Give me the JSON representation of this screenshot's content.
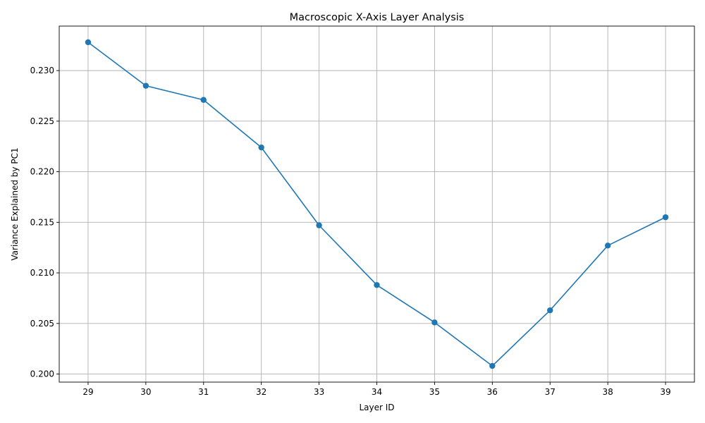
{
  "chart_data": {
    "type": "line",
    "title": "Macroscopic X-Axis Layer Analysis",
    "xlabel": "Layer ID",
    "ylabel": "Variance Explained by PC1",
    "x": [
      29,
      30,
      31,
      32,
      33,
      34,
      35,
      36,
      37,
      38,
      39
    ],
    "series": [
      {
        "values": [
          0.2328,
          0.2285,
          0.2271,
          0.2224,
          0.2147,
          0.2088,
          0.2051,
          0.2008,
          0.2063,
          0.2127,
          0.2155
        ],
        "color": "#1f77b4",
        "marker": "circle"
      }
    ],
    "xlim": [
      28.5,
      39.5
    ],
    "ylim": [
      0.1992,
      0.2344
    ],
    "x_ticks": [
      "29",
      "30",
      "31",
      "32",
      "33",
      "34",
      "35",
      "36",
      "37",
      "38",
      "39"
    ],
    "y_ticks": [
      "0.200",
      "0.205",
      "0.210",
      "0.215",
      "0.220",
      "0.225",
      "0.230"
    ],
    "grid": true,
    "legend": "none"
  }
}
